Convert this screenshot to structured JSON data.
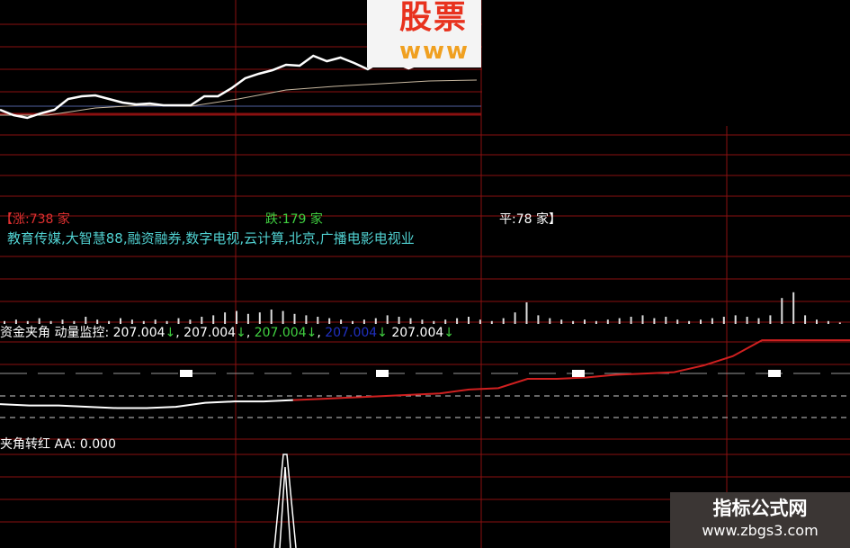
{
  "colors": {
    "grid": "#8a1010",
    "price": "#ffffff",
    "avg": "#c8b8a0",
    "base": "#5060a0",
    "rise": "#e03030",
    "fall": "#40d040",
    "flat": "#ffffff",
    "sectors": "#50d0d0",
    "indicator_up": "#d02020",
    "indicator_down": "#ffffff",
    "blue_value": "#2030c0"
  },
  "logo": {
    "cn": "股票",
    "www": "www"
  },
  "breadth": {
    "rise": "【涨:738 家",
    "fall": "跌:179 家",
    "flat": "平:78 家】"
  },
  "sectors": "教育传媒,大智慧88,融资融券,数字电视,云计算,北京,广播电影电视业",
  "indicator1": {
    "label": "资金夹角  动量监控:",
    "values": [
      "207.004",
      "207.004",
      "207.004",
      "207.004",
      "207.004"
    ],
    "arrow": "↓"
  },
  "indicator2": {
    "label": "夹角转红  AA: 0.000"
  },
  "watermark": {
    "title": "指标公式网",
    "url": "www.zbgs3.com"
  },
  "chart_data": [
    {
      "type": "line",
      "title": "",
      "series": [
        {
          "values": [
            18,
            12,
            9,
            14,
            18,
            30,
            33,
            34,
            30,
            26,
            24,
            25,
            23,
            23,
            23,
            33,
            33,
            42,
            53,
            58,
            62,
            68,
            67,
            78,
            72,
            76,
            70,
            63,
            72,
            70,
            64,
            70,
            80,
            85,
            75,
            72
          ]
        },
        {
          "values": [
            12,
            12,
            20,
            23,
            22,
            30,
            40,
            44,
            47,
            50,
            51
          ]
        },
        {
          "values": [
            22,
            22,
            22,
            22,
            22,
            22,
            22,
            22,
            22,
            22,
            22
          ]
        }
      ]
    },
    {
      "type": "bar",
      "title": "",
      "values": [
        2,
        3,
        2,
        4,
        2,
        3,
        2,
        5,
        3,
        2,
        4,
        3,
        2,
        3,
        2,
        4,
        3,
        5,
        6,
        8,
        9,
        7,
        8,
        10,
        9,
        7,
        6,
        5,
        4,
        3,
        2,
        3,
        4,
        6,
        5,
        4,
        3,
        2,
        3,
        4,
        5,
        3,
        2,
        4,
        8,
        15,
        6,
        4,
        3,
        2,
        3,
        2,
        3,
        4,
        5,
        6,
        4,
        5,
        3,
        2,
        3,
        4,
        5,
        6,
        5,
        4,
        6,
        18,
        22,
        6,
        3,
        2,
        1
      ]
    },
    {
      "type": "line",
      "title": "",
      "series": [
        {
          "values": [
            6,
            5,
            5,
            4,
            3,
            3,
            4,
            7,
            8,
            8,
            9,
            10,
            11,
            12,
            13,
            14,
            17,
            18,
            25,
            25,
            26,
            28,
            29,
            30,
            35,
            42,
            54,
            54,
            54,
            54
          ]
        }
      ],
      "markers": [
        1,
        1,
        1,
        1
      ]
    },
    {
      "type": "line",
      "title": "",
      "series": [
        {
          "values": [
            0,
            0,
            0,
            0,
            0,
            0,
            100,
            0,
            0,
            0,
            0,
            0,
            0,
            0
          ]
        }
      ]
    }
  ]
}
